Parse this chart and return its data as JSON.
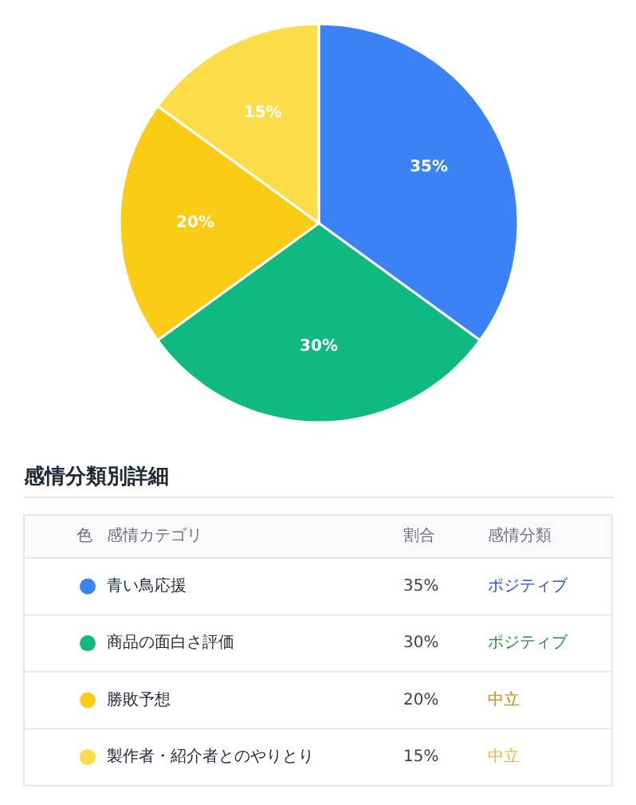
{
  "chart_data": {
    "type": "pie",
    "categories": [
      "青い鳥応援",
      "商品の面白さ評価",
      "勝敗予想",
      "製作者・紹介者とのやりとり"
    ],
    "values": [
      35,
      30,
      20,
      15
    ],
    "colors": [
      "#3b82f6",
      "#10b981",
      "#facc15",
      "#fddc4a"
    ],
    "data_labels": true,
    "legend": "bottom",
    "value_labels": [
      "35%",
      "30%",
      "20%",
      "15%"
    ],
    "annotations": [
      "感情分類別詳細",
      "色",
      "感情カテゴリ",
      "割合",
      "感情分類",
      "ポジティブ",
      "ポジティブ",
      "中立",
      "中立"
    ]
  }
}
